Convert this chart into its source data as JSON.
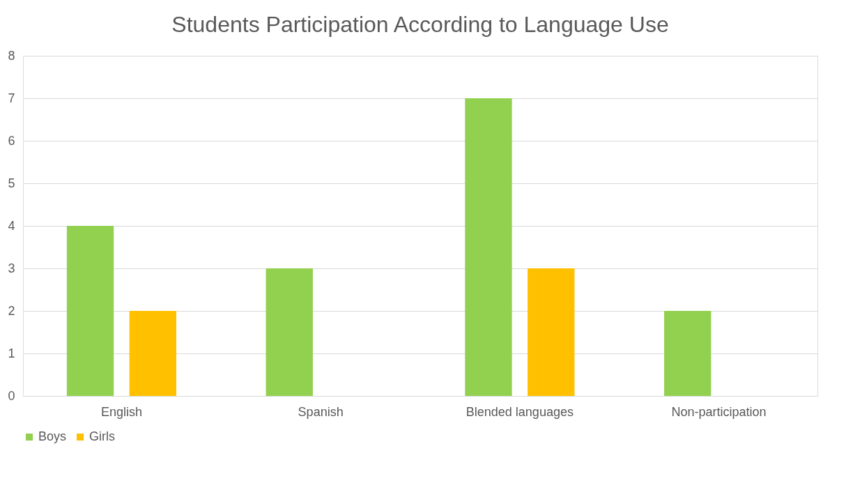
{
  "chart_data": {
    "type": "bar",
    "title": "Students Participation According to Language Use",
    "categories": [
      "English",
      "Spanish",
      "Blended languages",
      "Non-participation"
    ],
    "series": [
      {
        "name": "Boys",
        "color": "#92d050",
        "values": [
          4,
          3,
          7,
          2
        ]
      },
      {
        "name": "Girls",
        "color": "#ffc000",
        "values": [
          2,
          0,
          3,
          0
        ]
      }
    ],
    "ylim": [
      0,
      8
    ],
    "yticks": [
      0,
      1,
      2,
      3,
      4,
      5,
      6,
      7,
      8
    ],
    "grid": "y",
    "legend": "bottom"
  }
}
